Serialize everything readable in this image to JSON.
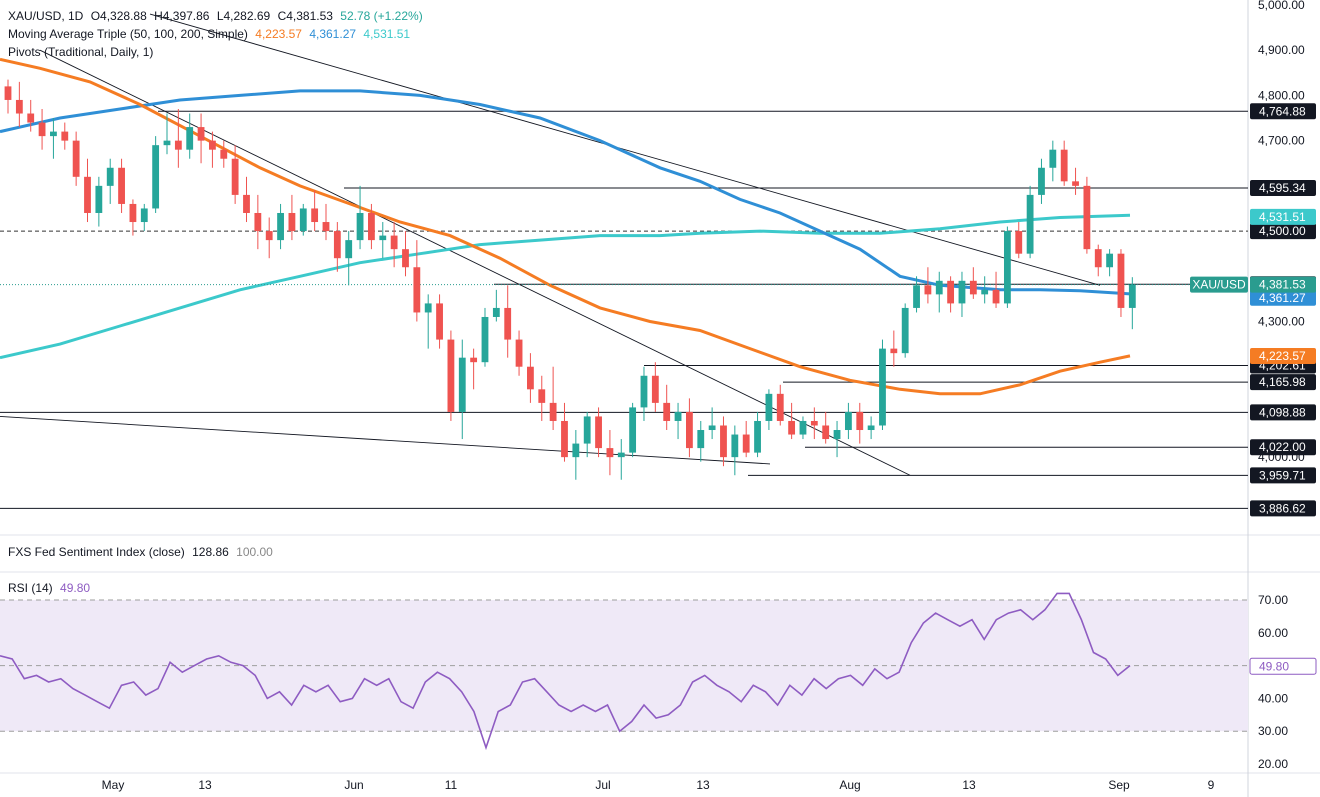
{
  "header": {
    "symbol": "XAU/USD, 1D",
    "open": "O4,328.88",
    "high": "H4,397.86",
    "low": "L4,282.69",
    "close": "C4,381.53",
    "change": "52.78 (+1.22%)",
    "ma_label": "Moving Average Triple (50, 100, 200, Simple)",
    "ma50_value": "4,223.57",
    "ma100_value": "4,361.27",
    "ma200_value": "4,531.51",
    "pivots_label": "Pivots (Traditional, Daily, 1)"
  },
  "sentiment_pane": {
    "label": "FXS Fed Sentiment Index (close)",
    "value": "128.86",
    "ref": "100.00"
  },
  "rsi_pane": {
    "label": "RSI (14)",
    "value": "49.80"
  },
  "colors": {
    "up": "#26a69a",
    "down": "#ef5350",
    "ma50": "#f57c23",
    "ma100": "#2f8fd6",
    "ma200": "#3cc9cb",
    "rsi": "#8e5cc2",
    "rsi_band": "#efe9f7",
    "price_tag": "#2a9c8f"
  },
  "chart_data": [
    {
      "type": "candlestick",
      "title": "XAU/USD, 1D",
      "x_labels": [
        "May",
        "13",
        "Jun",
        "11",
        "Jul",
        "13",
        "Aug",
        "13",
        "Sep",
        "9"
      ],
      "y_ticks": [
        "5,000.00",
        "4,900.00",
        "4,800.00",
        "4,700.00",
        "4,300.00",
        "4,000.00"
      ],
      "ylim": [
        3880,
        5000
      ],
      "candles": [
        [
          4820,
          4835,
          4760,
          4790
        ],
        [
          4790,
          4830,
          4730,
          4760
        ],
        [
          4760,
          4790,
          4720,
          4740
        ],
        [
          4740,
          4770,
          4680,
          4710
        ],
        [
          4710,
          4750,
          4660,
          4720
        ],
        [
          4720,
          4740,
          4680,
          4700
        ],
        [
          4700,
          4720,
          4600,
          4620
        ],
        [
          4620,
          4660,
          4520,
          4540
        ],
        [
          4540,
          4620,
          4510,
          4600
        ],
        [
          4600,
          4660,
          4560,
          4640
        ],
        [
          4640,
          4660,
          4540,
          4560
        ],
        [
          4560,
          4570,
          4490,
          4520
        ],
        [
          4520,
          4560,
          4500,
          4550
        ],
        [
          4550,
          4710,
          4540,
          4690
        ],
        [
          4690,
          4760,
          4670,
          4700
        ],
        [
          4700,
          4770,
          4640,
          4680
        ],
        [
          4680,
          4760,
          4660,
          4730
        ],
        [
          4730,
          4760,
          4650,
          4700
        ],
        [
          4700,
          4720,
          4640,
          4680
        ],
        [
          4680,
          4700,
          4640,
          4660
        ],
        [
          4660,
          4690,
          4560,
          4580
        ],
        [
          4580,
          4620,
          4520,
          4540
        ],
        [
          4540,
          4580,
          4460,
          4500
        ],
        [
          4500,
          4530,
          4440,
          4480
        ],
        [
          4480,
          4560,
          4460,
          4540
        ],
        [
          4540,
          4580,
          4480,
          4500
        ],
        [
          4500,
          4560,
          4490,
          4550
        ],
        [
          4550,
          4590,
          4500,
          4520
        ],
        [
          4520,
          4560,
          4480,
          4500
        ],
        [
          4500,
          4520,
          4410,
          4440
        ],
        [
          4440,
          4500,
          4380,
          4480
        ],
        [
          4480,
          4600,
          4460,
          4540
        ],
        [
          4540,
          4560,
          4460,
          4480
        ],
        [
          4480,
          4520,
          4440,
          4490
        ],
        [
          4490,
          4520,
          4420,
          4460
        ],
        [
          4460,
          4500,
          4400,
          4420
        ],
        [
          4420,
          4480,
          4300,
          4320
        ],
        [
          4320,
          4360,
          4240,
          4340
        ],
        [
          4340,
          4360,
          4240,
          4260
        ],
        [
          4260,
          4280,
          4080,
          4100
        ],
        [
          4100,
          4260,
          4040,
          4220
        ],
        [
          4220,
          4240,
          4150,
          4210
        ],
        [
          4210,
          4330,
          4200,
          4310
        ],
        [
          4310,
          4370,
          4300,
          4330
        ],
        [
          4330,
          4380,
          4220,
          4260
        ],
        [
          4260,
          4280,
          4180,
          4200
        ],
        [
          4200,
          4230,
          4120,
          4150
        ],
        [
          4150,
          4180,
          4080,
          4120
        ],
        [
          4120,
          4200,
          4060,
          4080
        ],
        [
          4080,
          4120,
          3990,
          4000
        ],
        [
          4000,
          4060,
          3950,
          4030
        ],
        [
          4030,
          4100,
          4000,
          4090
        ],
        [
          4090,
          4110,
          4000,
          4020
        ],
        [
          4020,
          4060,
          3960,
          4000
        ],
        [
          4000,
          4040,
          3950,
          4010
        ],
        [
          4010,
          4120,
          4000,
          4110
        ],
        [
          4110,
          4200,
          4080,
          4180
        ],
        [
          4180,
          4210,
          4100,
          4120
        ],
        [
          4120,
          4160,
          4060,
          4080
        ],
        [
          4080,
          4120,
          4040,
          4100
        ],
        [
          4100,
          4130,
          4000,
          4020
        ],
        [
          4020,
          4080,
          3990,
          4060
        ],
        [
          4060,
          4110,
          4040,
          4070
        ],
        [
          4070,
          4090,
          3980,
          4000
        ],
        [
          4000,
          4070,
          3960,
          4050
        ],
        [
          4050,
          4080,
          4000,
          4010
        ],
        [
          4010,
          4100,
          4000,
          4080
        ],
        [
          4080,
          4150,
          4060,
          4140
        ],
        [
          4140,
          4160,
          4070,
          4080
        ],
        [
          4080,
          4120,
          4040,
          4050
        ],
        [
          4050,
          4090,
          4040,
          4080
        ],
        [
          4080,
          4110,
          4040,
          4070
        ],
        [
          4070,
          4100,
          4030,
          4040
        ],
        [
          4040,
          4080,
          4000,
          4060
        ],
        [
          4060,
          4120,
          4040,
          4100
        ],
        [
          4100,
          4120,
          4030,
          4060
        ],
        [
          4060,
          4090,
          4040,
          4070
        ],
        [
          4070,
          4260,
          4060,
          4240
        ],
        [
          4240,
          4280,
          4200,
          4230
        ],
        [
          4230,
          4340,
          4220,
          4330
        ],
        [
          4330,
          4400,
          4320,
          4380
        ],
        [
          4380,
          4420,
          4340,
          4360
        ],
        [
          4360,
          4410,
          4320,
          4390
        ],
        [
          4390,
          4400,
          4320,
          4340
        ],
        [
          4340,
          4410,
          4310,
          4390
        ],
        [
          4390,
          4420,
          4350,
          4360
        ],
        [
          4360,
          4400,
          4340,
          4370
        ],
        [
          4370,
          4410,
          4330,
          4340
        ],
        [
          4340,
          4510,
          4330,
          4500
        ],
        [
          4500,
          4520,
          4440,
          4450
        ],
        [
          4450,
          4600,
          4440,
          4580
        ],
        [
          4580,
          4660,
          4560,
          4640
        ],
        [
          4640,
          4700,
          4610,
          4680
        ],
        [
          4680,
          4700,
          4600,
          4610
        ],
        [
          4610,
          4640,
          4580,
          4600
        ],
        [
          4600,
          4620,
          4450,
          4460
        ],
        [
          4460,
          4470,
          4400,
          4420
        ],
        [
          4420,
          4460,
          4400,
          4450
        ],
        [
          4450,
          4460,
          4310,
          4330
        ],
        [
          4330,
          4398,
          4283,
          4382
        ]
      ],
      "ma50": [
        [
          0,
          4880
        ],
        [
          40,
          4860
        ],
        [
          90,
          4830
        ],
        [
          140,
          4780
        ],
        [
          200,
          4710
        ],
        [
          260,
          4640
        ],
        [
          300,
          4600
        ],
        [
          350,
          4560
        ],
        [
          400,
          4520
        ],
        [
          450,
          4490
        ],
        [
          500,
          4440
        ],
        [
          550,
          4380
        ],
        [
          600,
          4330
        ],
        [
          650,
          4300
        ],
        [
          700,
          4280
        ],
        [
          750,
          4240
        ],
        [
          800,
          4200
        ],
        [
          850,
          4170
        ],
        [
          900,
          4150
        ],
        [
          940,
          4140
        ],
        [
          980,
          4140
        ],
        [
          1020,
          4160
        ],
        [
          1060,
          4190
        ],
        [
          1100,
          4210
        ],
        [
          1130,
          4224
        ]
      ],
      "ma100": [
        [
          0,
          4720
        ],
        [
          60,
          4750
        ],
        [
          120,
          4770
        ],
        [
          180,
          4790
        ],
        [
          240,
          4800
        ],
        [
          300,
          4810
        ],
        [
          360,
          4810
        ],
        [
          420,
          4800
        ],
        [
          480,
          4780
        ],
        [
          540,
          4750
        ],
        [
          600,
          4700
        ],
        [
          660,
          4640
        ],
        [
          700,
          4610
        ],
        [
          740,
          4570
        ],
        [
          780,
          4540
        ],
        [
          820,
          4500
        ],
        [
          860,
          4460
        ],
        [
          900,
          4400
        ],
        [
          940,
          4380
        ],
        [
          1000,
          4370
        ],
        [
          1040,
          4370
        ],
        [
          1080,
          4368
        ],
        [
          1130,
          4361
        ]
      ],
      "ma200": [
        [
          0,
          4220
        ],
        [
          60,
          4250
        ],
        [
          120,
          4290
        ],
        [
          180,
          4330
        ],
        [
          240,
          4370
        ],
        [
          300,
          4400
        ],
        [
          360,
          4430
        ],
        [
          420,
          4450
        ],
        [
          480,
          4470
        ],
        [
          540,
          4480
        ],
        [
          600,
          4490
        ],
        [
          660,
          4490
        ],
        [
          700,
          4495
        ],
        [
          760,
          4500
        ],
        [
          820,
          4495
        ],
        [
          880,
          4495
        ],
        [
          940,
          4505
        ],
        [
          1000,
          4520
        ],
        [
          1060,
          4530
        ],
        [
          1130,
          4535
        ]
      ],
      "pivots": [
        {
          "label": "4,764.88",
          "value": 4764.88,
          "x0": 158
        },
        {
          "label": "4,595.34",
          "value": 4595.34,
          "x0": 344
        },
        {
          "label": "4,382.36",
          "value": 4382.36,
          "x0": 494
        },
        {
          "label": "4,202.61",
          "value": 4202.61,
          "x0": 644
        },
        {
          "label": "4,165.98",
          "value": 4165.98,
          "x0": 783
        },
        {
          "label": "4,098.88",
          "value": 4098.88,
          "x0": 0
        },
        {
          "label": "4,022.00",
          "value": 4022.0,
          "x0": 805
        },
        {
          "label": "3,959.71",
          "value": 3959.71,
          "x0": 748
        },
        {
          "label": "3,886.62",
          "value": 3886.62,
          "x0": 0
        }
      ],
      "ref_level": {
        "label": "4,500.00",
        "value": 4500
      },
      "last_price": {
        "label": "4,381.53",
        "value": 4381.53,
        "name": "XAU/USD"
      },
      "ma_tags": [
        {
          "label": "4,531.51",
          "value": 4531.51
        },
        {
          "label": "4,361.27",
          "value": 4361.27
        },
        {
          "label": "4,223.57",
          "value": 4223.57
        }
      ],
      "trendlines": [
        [
          [
            150,
            4980
          ],
          [
            1100,
            4380
          ]
        ],
        [
          [
            40,
            4900
          ],
          [
            910,
            3960
          ]
        ],
        [
          [
            0,
            4090
          ],
          [
            770,
            3985
          ]
        ]
      ]
    },
    {
      "type": "line",
      "title": "RSI (14)",
      "y_ticks": [
        "70.00",
        "60.00",
        "40.00",
        "30.00",
        "20.00"
      ],
      "ylim": [
        18,
        76
      ],
      "band": [
        30,
        70
      ],
      "midline": 50,
      "last": {
        "label": "49.80",
        "value": 49.8
      },
      "values": [
        53,
        52,
        46,
        47,
        45,
        46,
        43,
        41,
        39,
        37,
        44,
        45,
        41,
        43,
        51,
        48,
        50,
        52,
        53,
        51,
        50,
        47,
        40,
        42,
        38,
        44,
        42,
        44,
        39,
        40,
        46,
        44,
        46,
        39,
        37,
        45,
        48,
        46,
        42,
        36,
        25,
        36,
        38,
        45,
        46,
        42,
        38,
        36,
        38,
        36,
        38,
        30,
        33,
        38,
        34,
        35,
        38,
        45,
        47,
        44,
        42,
        39,
        44,
        42,
        38,
        44,
        41,
        46,
        43,
        46,
        47,
        44,
        49,
        46,
        48,
        57,
        63,
        66,
        64,
        62,
        64,
        58,
        64,
        66,
        67,
        64,
        67,
        72,
        72,
        64,
        54,
        52,
        47,
        50
      ]
    }
  ]
}
